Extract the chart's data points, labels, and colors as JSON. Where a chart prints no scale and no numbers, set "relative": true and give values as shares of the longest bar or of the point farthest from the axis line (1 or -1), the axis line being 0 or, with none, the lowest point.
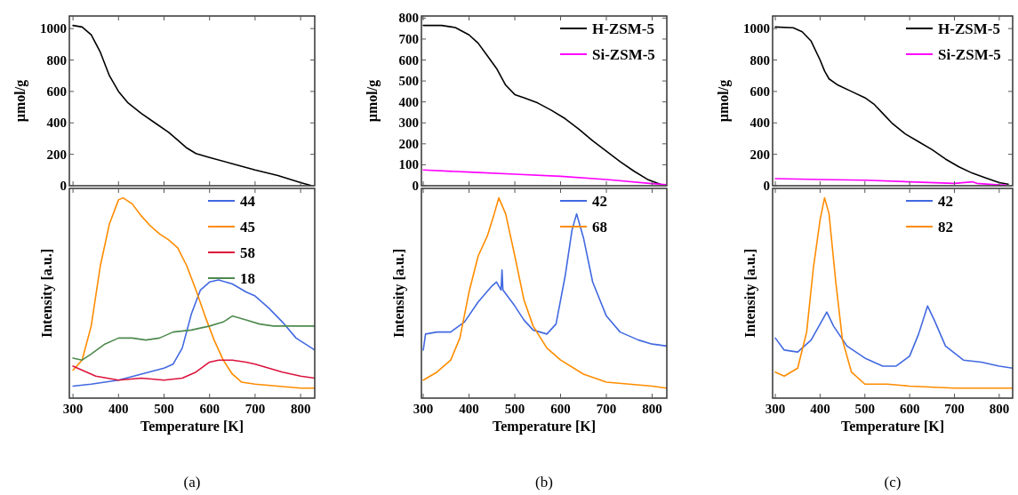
{
  "chart_data": [
    {
      "type": "line",
      "ylabel": "μmol/g",
      "xlim": [
        292,
        831
      ],
      "ylim": [
        0,
        1080
      ],
      "xticks": [
        300,
        400,
        500,
        600,
        700,
        800
      ],
      "yticks": [
        0,
        200,
        400,
        600,
        800,
        1000
      ],
      "tick_labels": "y",
      "series": [
        {
          "color": "#000000",
          "x": [
            300,
            320,
            340,
            360,
            380,
            400,
            420,
            450,
            480,
            510,
            530,
            550,
            570,
            600,
            650,
            700,
            750,
            800,
            825
          ],
          "values": [
            1020,
            1010,
            960,
            850,
            700,
            600,
            530,
            460,
            400,
            340,
            290,
            240,
            205,
            180,
            140,
            100,
            65,
            20,
            0
          ]
        }
      ]
    },
    {
      "type": "line",
      "relative": true,
      "xlabel": "Temperature [K]",
      "ylabel": "Intensity [a.u.]",
      "xlim": [
        292,
        831
      ],
      "xticks": [
        300,
        400,
        500,
        600,
        700,
        800
      ],
      "tick_labels": "x",
      "legend": "top right",
      "annotations": [
        "(a)"
      ],
      "series": [
        {
          "name": "44",
          "color": "#4169e1",
          "x": [
            300,
            340,
            400,
            450,
            500,
            520,
            540,
            560,
            580,
            600,
            620,
            650,
            680,
            700,
            730,
            760,
            790,
            831
          ],
          "values": [
            0.06,
            0.07,
            0.09,
            0.12,
            0.15,
            0.17,
            0.25,
            0.42,
            0.54,
            0.58,
            0.59,
            0.57,
            0.53,
            0.51,
            0.45,
            0.38,
            0.3,
            0.24
          ]
        },
        {
          "name": "45",
          "color": "#ff8c00",
          "x": [
            300,
            320,
            340,
            360,
            380,
            400,
            410,
            430,
            450,
            470,
            490,
            510,
            530,
            550,
            570,
            590,
            610,
            630,
            650,
            670,
            700,
            750,
            800,
            831
          ],
          "values": [
            0.14,
            0.19,
            0.36,
            0.66,
            0.87,
            0.99,
            1,
            0.97,
            0.91,
            0.86,
            0.82,
            0.79,
            0.75,
            0.66,
            0.54,
            0.41,
            0.29,
            0.19,
            0.12,
            0.08,
            0.07,
            0.06,
            0.05,
            0.05
          ]
        },
        {
          "name": "58",
          "color": "#dc143c",
          "x": [
            300,
            320,
            350,
            400,
            450,
            500,
            540,
            570,
            600,
            620,
            650,
            680,
            700,
            730,
            760,
            800,
            831
          ],
          "values": [
            0.16,
            0.14,
            0.11,
            0.09,
            0.1,
            0.09,
            0.1,
            0.13,
            0.18,
            0.19,
            0.19,
            0.18,
            0.17,
            0.15,
            0.13,
            0.11,
            0.1
          ]
        },
        {
          "name": "18",
          "color": "#4e8a4e",
          "x": [
            300,
            320,
            340,
            370,
            400,
            430,
            460,
            490,
            520,
            560,
            600,
            630,
            650,
            680,
            710,
            740,
            780,
            831
          ],
          "values": [
            0.2,
            0.19,
            0.22,
            0.27,
            0.3,
            0.3,
            0.29,
            0.3,
            0.33,
            0.34,
            0.36,
            0.38,
            0.41,
            0.39,
            0.37,
            0.36,
            0.36,
            0.36
          ]
        }
      ]
    },
    {
      "type": "line",
      "ylabel": "μmol/g",
      "xlim": [
        296,
        832
      ],
      "ylim": [
        0,
        810
      ],
      "xticks": [
        300,
        400,
        500,
        600,
        700,
        800
      ],
      "yticks": [
        0,
        100,
        200,
        300,
        400,
        500,
        600,
        700,
        800
      ],
      "tick_labels": "y",
      "legend": "top right",
      "series": [
        {
          "name": "H-ZSM-5",
          "color": "#000000",
          "x": [
            300,
            340,
            370,
            400,
            420,
            440,
            460,
            480,
            500,
            520,
            550,
            580,
            610,
            640,
            670,
            700,
            730,
            760,
            790,
            820
          ],
          "values": [
            765,
            765,
            755,
            720,
            680,
            620,
            560,
            480,
            435,
            420,
            395,
            360,
            320,
            270,
            215,
            165,
            115,
            70,
            30,
            5
          ]
        },
        {
          "name": "Si-ZSM-5",
          "color": "#ff00ff",
          "x": [
            300,
            400,
            500,
            600,
            700,
            800,
            830
          ],
          "values": [
            75,
            65,
            55,
            45,
            30,
            10,
            5
          ]
        }
      ]
    },
    {
      "type": "line",
      "relative": true,
      "xlabel": "Temperature [K]",
      "ylabel": "Intensity [a.u.]",
      "xlim": [
        296,
        832
      ],
      "xticks": [
        300,
        400,
        500,
        600,
        700,
        800
      ],
      "tick_labels": "x",
      "legend": "top right",
      "annotations": [
        "(b)"
      ],
      "series": [
        {
          "name": "42",
          "color": "#4169e1",
          "x": [
            300,
            305,
            330,
            360,
            390,
            420,
            450,
            460,
            470,
            472,
            474,
            500,
            520,
            540,
            570,
            590,
            610,
            625,
            635,
            650,
            670,
            700,
            730,
            770,
            800,
            832
          ],
          "values": [
            0.24,
            0.32,
            0.33,
            0.33,
            0.38,
            0.48,
            0.56,
            0.58,
            0.54,
            0.64,
            0.54,
            0.46,
            0.39,
            0.34,
            0.32,
            0.37,
            0.61,
            0.84,
            0.92,
            0.8,
            0.58,
            0.41,
            0.33,
            0.29,
            0.27,
            0.26
          ]
        },
        {
          "name": "68",
          "color": "#ff8c00",
          "x": [
            300,
            330,
            360,
            380,
            400,
            420,
            440,
            455,
            465,
            480,
            500,
            520,
            540,
            570,
            600,
            650,
            700,
            750,
            800,
            832
          ],
          "values": [
            0.09,
            0.13,
            0.19,
            0.3,
            0.53,
            0.71,
            0.81,
            0.92,
            1,
            0.92,
            0.71,
            0.49,
            0.36,
            0.25,
            0.19,
            0.12,
            0.08,
            0.07,
            0.06,
            0.05
          ]
        }
      ]
    },
    {
      "type": "line",
      "ylabel": "μmol/g",
      "xlim": [
        294,
        830
      ],
      "ylim": [
        0,
        1080
      ],
      "xticks": [
        300,
        400,
        500,
        600,
        700,
        800
      ],
      "yticks": [
        0,
        200,
        400,
        600,
        800,
        1000
      ],
      "tick_labels": "y",
      "legend": "top right",
      "series": [
        {
          "name": "H-ZSM-5",
          "color": "#000000",
          "x": [
            300,
            340,
            360,
            380,
            400,
            410,
            420,
            440,
            470,
            500,
            520,
            540,
            560,
            590,
            620,
            650,
            680,
            710,
            740,
            770,
            800,
            820
          ],
          "values": [
            1010,
            1005,
            980,
            920,
            800,
            730,
            680,
            640,
            600,
            560,
            520,
            460,
            400,
            330,
            280,
            230,
            170,
            120,
            80,
            50,
            20,
            10
          ]
        },
        {
          "name": "Si-ZSM-5",
          "color": "#ff00ff",
          "x": [
            300,
            400,
            500,
            600,
            700,
            740,
            750,
            800,
            815
          ],
          "values": [
            45,
            40,
            35,
            25,
            15,
            25,
            15,
            5,
            5
          ]
        }
      ]
    },
    {
      "type": "line",
      "relative": true,
      "xlabel": "Temperature [K]",
      "ylabel": "Intensity [a.u.]",
      "xlim": [
        294,
        830
      ],
      "xticks": [
        300,
        400,
        500,
        600,
        700,
        800
      ],
      "tick_labels": "x",
      "legend": "top right",
      "annotations": [
        "(c)"
      ],
      "series": [
        {
          "name": "42",
          "color": "#4169e1",
          "x": [
            300,
            320,
            350,
            380,
            400,
            415,
            430,
            460,
            500,
            540,
            570,
            600,
            620,
            640,
            655,
            680,
            720,
            760,
            800,
            830
          ],
          "values": [
            0.3,
            0.24,
            0.23,
            0.29,
            0.37,
            0.43,
            0.36,
            0.26,
            0.2,
            0.16,
            0.16,
            0.21,
            0.32,
            0.46,
            0.39,
            0.26,
            0.19,
            0.18,
            0.16,
            0.15
          ]
        },
        {
          "name": "82",
          "color": "#ff8c00",
          "x": [
            300,
            320,
            350,
            370,
            385,
            400,
            410,
            420,
            435,
            450,
            470,
            500,
            550,
            600,
            700,
            830
          ],
          "values": [
            0.13,
            0.11,
            0.15,
            0.33,
            0.65,
            0.89,
            1,
            0.92,
            0.58,
            0.29,
            0.13,
            0.07,
            0.07,
            0.06,
            0.05,
            0.05
          ]
        }
      ]
    }
  ]
}
